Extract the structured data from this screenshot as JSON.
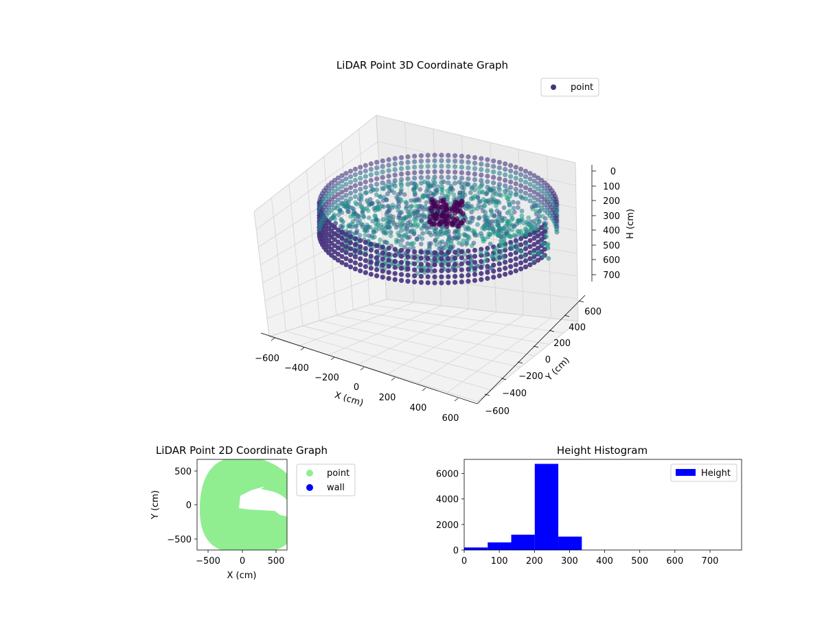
{
  "chart_data": [
    {
      "type": "scatter3d",
      "title": "LiDAR Point 3D Coordinate Graph",
      "xlabel": "X (cm)",
      "ylabel": "Y (cm)",
      "zlabel": "H (cm)",
      "xlim": [
        -650,
        650
      ],
      "ylim": [
        -650,
        650
      ],
      "zlim": [
        750,
        0
      ],
      "z_inverted": true,
      "xticks": [
        "−600",
        "−400",
        "−200",
        "0",
        "200",
        "400",
        "600"
      ],
      "yticks": [
        "−600",
        "−400",
        "−200",
        "0",
        "200",
        "400",
        "600"
      ],
      "zticks": [
        "0",
        "100",
        "200",
        "300",
        "400",
        "500",
        "600",
        "700"
      ],
      "legend": {
        "position": "top-right",
        "entries": [
          "point"
        ]
      },
      "colormap": "viridis",
      "grid": true,
      "description_values": {
        "wall_radius_cm": 600,
        "wall_height_range_cm": [
          150,
          700
        ],
        "floor_height_cm": 250
      }
    },
    {
      "type": "scatter",
      "title": "LiDAR Point 2D Coordinate Graph",
      "xlabel": "X (cm)",
      "ylabel": "Y (cm)",
      "xlim": [
        -650,
        650
      ],
      "ylim": [
        -650,
        650
      ],
      "xticks": [
        "−500",
        "0",
        "500"
      ],
      "yticks": [
        "−500",
        "0",
        "500"
      ],
      "legend": {
        "position": "outside-right",
        "entries": [
          "point",
          "wall"
        ]
      },
      "series": [
        {
          "name": "point",
          "color": "#90ee90"
        },
        {
          "name": "wall",
          "color": "#0000ff"
        }
      ]
    },
    {
      "type": "bar",
      "title": "Height Histogram",
      "xlabel": "",
      "ylabel": "",
      "bin_edges": [
        0,
        67,
        134,
        201,
        268,
        335,
        402,
        469,
        536,
        603,
        670,
        737,
        790
      ],
      "values": [
        200,
        600,
        1200,
        6750,
        1050,
        0,
        0,
        0,
        0,
        0,
        0,
        0
      ],
      "xlim": [
        0,
        790
      ],
      "ylim": [
        0,
        7100
      ],
      "xticks": [
        0,
        100,
        200,
        300,
        400,
        500,
        600,
        700
      ],
      "yticks": [
        0,
        2000,
        4000,
        6000
      ],
      "color": "#0000ff",
      "legend": {
        "position": "top-right",
        "entries": [
          "Height"
        ]
      },
      "grid": false
    }
  ]
}
